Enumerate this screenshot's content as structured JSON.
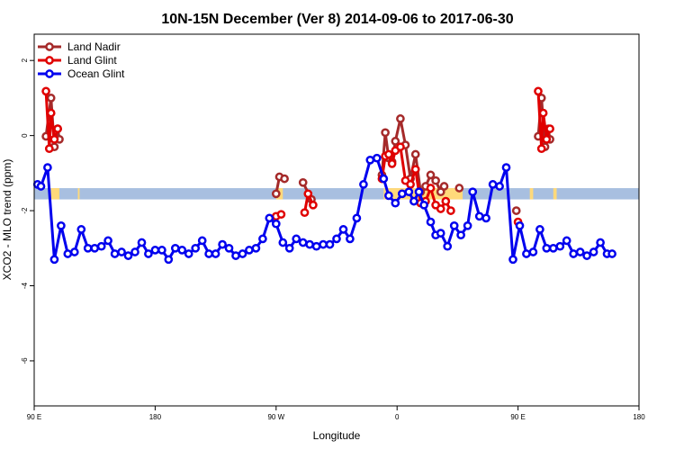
{
  "chart_data": {
    "type": "line",
    "title": "10N-15N December (Ver 8)   2014-09-06 to 2017-06-30",
    "xlabel": "Longitude",
    "ylabel": "XCO2 - MLO trend (ppm)",
    "xlim": [
      90,
      450
    ],
    "ylim": [
      -7.2,
      2.7
    ],
    "x_ticks": [
      {
        "value": 90,
        "label": "90 E"
      },
      {
        "value": 162,
        "label": "180"
      },
      {
        "value": 234,
        "label": "90 W"
      },
      {
        "value": 306,
        "label": "0"
      },
      {
        "value": 378,
        "label": "90 E"
      },
      {
        "value": 450,
        "label": "180"
      }
    ],
    "y_ticks": [
      {
        "value": 2,
        "label": "2"
      },
      {
        "value": 0,
        "label": "0"
      },
      {
        "value": -2,
        "label": "-2"
      },
      {
        "value": -4,
        "label": "-4"
      },
      {
        "value": -6,
        "label": "-6"
      }
    ],
    "band": {
      "y_low": -1.7,
      "y_high": -1.4,
      "color": "#a8bfe0"
    },
    "yellow_segments": [
      {
        "x_start": 100,
        "x_end": 105
      },
      {
        "x_start": 116,
        "x_end": 117
      },
      {
        "x_start": 234,
        "x_end": 238
      },
      {
        "x_start": 298,
        "x_end": 345
      },
      {
        "x_start": 385,
        "x_end": 387
      },
      {
        "x_start": 399,
        "x_end": 401
      }
    ],
    "yellow_color": "#ffd97a",
    "grid": false,
    "legend_position": "top-left",
    "series": [
      {
        "name": "Land Nadir",
        "color": "#a52a2a",
        "segments": [
          [
            [
              97,
              -0.02
            ],
            [
              100,
              1.0
            ],
            [
              102,
              -0.3
            ],
            [
              104,
              0.18
            ],
            [
              105,
              -0.1
            ]
          ],
          [
            [
              234,
              -1.55
            ],
            [
              236,
              -1.1
            ],
            [
              239,
              -1.15
            ]
          ],
          [
            [
              250,
              -1.25
            ],
            [
              255,
              -1.7
            ]
          ],
          [
            [
              297,
              -1.05
            ],
            [
              299,
              0.08
            ],
            [
              301,
              -0.6
            ],
            [
              303,
              -0.7
            ],
            [
              305,
              -0.15
            ],
            [
              308,
              0.45
            ],
            [
              311,
              -0.25
            ],
            [
              314,
              -1.15
            ],
            [
              317,
              -0.5
            ],
            [
              320,
              -1.5
            ],
            [
              323,
              -1.35
            ],
            [
              326,
              -1.05
            ],
            [
              329,
              -1.2
            ],
            [
              332,
              -1.5
            ],
            [
              334,
              -1.35
            ]
          ],
          [
            [
              343,
              -1.4
            ]
          ],
          [
            [
              377,
              -2.0
            ]
          ],
          [
            [
              390,
              -0.02
            ],
            [
              392,
              1.0
            ],
            [
              394,
              -0.3
            ],
            [
              396,
              0.18
            ],
            [
              397,
              -0.1
            ]
          ]
        ]
      },
      {
        "name": "Land Glint",
        "color": "#e00000",
        "segments": [
          [
            [
              97,
              1.18
            ],
            [
              99,
              -0.35
            ],
            [
              100,
              0.6
            ],
            [
              102,
              -0.1
            ],
            [
              104,
              0.18
            ]
          ],
          [
            [
              234,
              -2.15
            ],
            [
              237,
              -2.1
            ]
          ],
          [
            [
              251,
              -2.05
            ],
            [
              253,
              -1.55
            ],
            [
              256,
              -1.85
            ]
          ],
          [
            [
              297,
              -1.15
            ],
            [
              299,
              -0.55
            ],
            [
              301,
              -0.5
            ],
            [
              303,
              -0.75
            ],
            [
              305,
              -0.4
            ],
            [
              308,
              -0.3
            ],
            [
              311,
              -1.2
            ],
            [
              314,
              -1.3
            ],
            [
              317,
              -0.9
            ],
            [
              320,
              -1.8
            ],
            [
              323,
              -1.75
            ],
            [
              326,
              -1.4
            ],
            [
              329,
              -1.85
            ],
            [
              332,
              -1.95
            ],
            [
              335,
              -1.75
            ],
            [
              338,
              -2.0
            ]
          ],
          [
            [
              378,
              -2.3
            ]
          ],
          [
            [
              390,
              1.18
            ],
            [
              392,
              -0.35
            ],
            [
              393,
              0.6
            ],
            [
              395,
              -0.1
            ],
            [
              397,
              0.18
            ]
          ]
        ]
      },
      {
        "name": "Ocean Glint",
        "color": "#0000ee",
        "segments": [
          [
            [
              92,
              -1.3
            ],
            [
              94,
              -1.35
            ],
            [
              98,
              -0.85
            ],
            [
              102,
              -3.3
            ],
            [
              106,
              -2.4
            ],
            [
              110,
              -3.15
            ],
            [
              114,
              -3.1
            ],
            [
              118,
              -2.5
            ],
            [
              122,
              -3.0
            ],
            [
              126,
              -3.0
            ],
            [
              130,
              -2.95
            ],
            [
              134,
              -2.8
            ],
            [
              138,
              -3.15
            ],
            [
              142,
              -3.1
            ],
            [
              146,
              -3.2
            ],
            [
              150,
              -3.1
            ],
            [
              154,
              -2.85
            ],
            [
              158,
              -3.15
            ],
            [
              162,
              -3.05
            ],
            [
              166,
              -3.05
            ],
            [
              170,
              -3.3
            ],
            [
              174,
              -3.0
            ],
            [
              178,
              -3.05
            ],
            [
              182,
              -3.15
            ],
            [
              186,
              -3.0
            ],
            [
              190,
              -2.8
            ],
            [
              194,
              -3.15
            ],
            [
              198,
              -3.15
            ],
            [
              202,
              -2.9
            ],
            [
              206,
              -3.0
            ],
            [
              210,
              -3.2
            ],
            [
              214,
              -3.15
            ],
            [
              218,
              -3.05
            ],
            [
              222,
              -3.0
            ],
            [
              226,
              -2.75
            ],
            [
              230,
              -2.2
            ],
            [
              234,
              -2.35
            ],
            [
              238,
              -2.85
            ],
            [
              242,
              -3.0
            ],
            [
              246,
              -2.75
            ],
            [
              250,
              -2.85
            ],
            [
              254,
              -2.9
            ],
            [
              258,
              -2.95
            ],
            [
              262,
              -2.9
            ],
            [
              266,
              -2.9
            ],
            [
              270,
              -2.75
            ],
            [
              274,
              -2.5
            ],
            [
              278,
              -2.75
            ],
            [
              282,
              -2.2
            ],
            [
              286,
              -1.3
            ],
            [
              290,
              -0.65
            ],
            [
              294,
              -0.6
            ],
            [
              298,
              -1.15
            ],
            [
              301,
              -1.6
            ],
            [
              305,
              -1.8
            ],
            [
              309,
              -1.55
            ],
            [
              313,
              -1.5
            ],
            [
              316,
              -1.75
            ],
            [
              319,
              -1.5
            ],
            [
              322,
              -1.85
            ],
            [
              326,
              -2.3
            ],
            [
              329,
              -2.65
            ],
            [
              332,
              -2.6
            ],
            [
              336,
              -2.95
            ],
            [
              340,
              -2.4
            ],
            [
              344,
              -2.65
            ],
            [
              348,
              -2.4
            ],
            [
              351,
              -1.5
            ],
            [
              355,
              -2.15
            ],
            [
              359,
              -2.2
            ],
            [
              363,
              -1.3
            ],
            [
              367,
              -1.35
            ],
            [
              371,
              -0.85
            ],
            [
              375,
              -3.3
            ],
            [
              379,
              -2.4
            ],
            [
              383,
              -3.15
            ],
            [
              387,
              -3.1
            ],
            [
              391,
              -2.5
            ],
            [
              395,
              -3.0
            ],
            [
              399,
              -3.0
            ],
            [
              403,
              -2.95
            ],
            [
              407,
              -2.8
            ],
            [
              411,
              -3.15
            ],
            [
              415,
              -3.1
            ],
            [
              419,
              -3.2
            ],
            [
              423,
              -3.1
            ],
            [
              427,
              -2.85
            ],
            [
              431,
              -3.15
            ],
            [
              434,
              -3.15
            ]
          ]
        ]
      }
    ]
  }
}
